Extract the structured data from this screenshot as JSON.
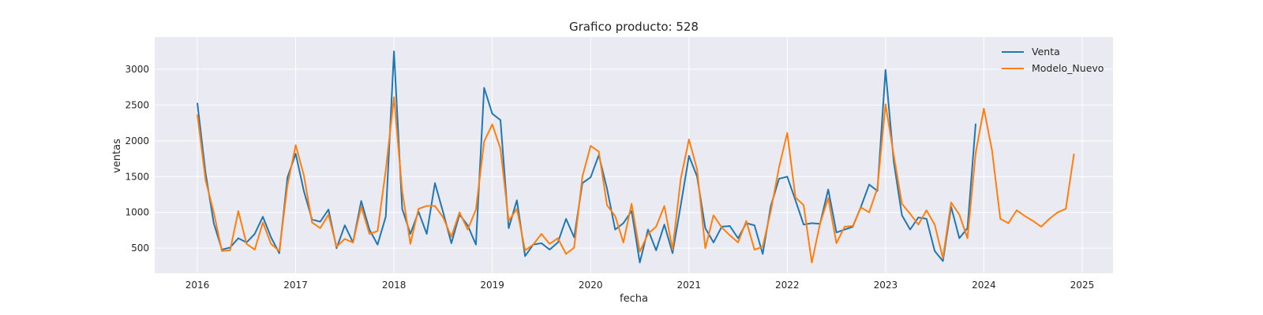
{
  "chart_data": {
    "type": "line",
    "title": "Grafico producto: 528",
    "xlabel": "fecha",
    "ylabel": "ventas",
    "xlim": [
      2015.55,
      2025.35
    ],
    "ylim": [
      150,
      3450
    ],
    "xticks": [
      2016,
      2017,
      2018,
      2019,
      2020,
      2021,
      2022,
      2023,
      2024,
      2025
    ],
    "xtick_labels": [
      "2016",
      "2017",
      "2018",
      "2019",
      "2020",
      "2021",
      "2022",
      "2023",
      "2024",
      "2025"
    ],
    "yticks": [
      500,
      1000,
      1500,
      2000,
      2500,
      3000
    ],
    "ytick_labels": [
      "500",
      "1000",
      "1500",
      "2000",
      "2500",
      "3000"
    ],
    "grid": true,
    "legend_position": "top-right",
    "background_color": "#eaeaf2",
    "series": [
      {
        "name": "Venta",
        "color": "#1f77b4",
        "x_start": "2016-01",
        "frequency": "monthly",
        "values": [
          2530,
          1550,
          850,
          480,
          510,
          640,
          580,
          700,
          940,
          650,
          430,
          1490,
          1820,
          1300,
          900,
          870,
          1040,
          500,
          820,
          580,
          1160,
          760,
          550,
          940,
          3250,
          1050,
          700,
          1010,
          700,
          1410,
          1000,
          570,
          970,
          820,
          550,
          2740,
          2380,
          2290,
          780,
          1170,
          390,
          550,
          570,
          480,
          580,
          910,
          650,
          1410,
          1490,
          1800,
          1330,
          760,
          850,
          1020,
          300,
          760,
          470,
          830,
          430,
          1100,
          1790,
          1500,
          780,
          580,
          800,
          810,
          640,
          850,
          820,
          420,
          1090,
          1470,
          1500,
          1170,
          830,
          850,
          840,
          1320,
          720,
          760,
          800,
          1080,
          1390,
          1300,
          2990,
          1710,
          960,
          760,
          930,
          910,
          460,
          320,
          1080,
          640,
          780,
          2240
        ]
      },
      {
        "name": "Modelo_Nuevo",
        "color": "#ff7f0e",
        "x_start": "2016-01",
        "frequency": "monthly",
        "values": [
          2370,
          1450,
          1000,
          460,
          470,
          1020,
          560,
          480,
          860,
          560,
          460,
          1380,
          1940,
          1520,
          860,
          780,
          970,
          520,
          630,
          580,
          1080,
          700,
          740,
          1590,
          2610,
          1300,
          560,
          1050,
          1090,
          1090,
          930,
          660,
          1000,
          760,
          1040,
          1990,
          2230,
          1890,
          880,
          1050,
          470,
          550,
          700,
          560,
          640,
          420,
          510,
          1500,
          1930,
          1850,
          1100,
          950,
          580,
          1120,
          450,
          700,
          800,
          1090,
          480,
          1470,
          2020,
          1600,
          500,
          960,
          790,
          680,
          580,
          880,
          480,
          520,
          1020,
          1630,
          2110,
          1210,
          1100,
          300,
          840,
          1200,
          570,
          800,
          810,
          1070,
          1000,
          1340,
          2510,
          1800,
          1120,
          980,
          830,
          1030,
          830,
          360,
          1140,
          970,
          640,
          1830,
          2450,
          1860,
          910,
          850,
          1030,
          950,
          880,
          800,
          910,
          1000,
          1050,
          1820
        ]
      }
    ]
  }
}
